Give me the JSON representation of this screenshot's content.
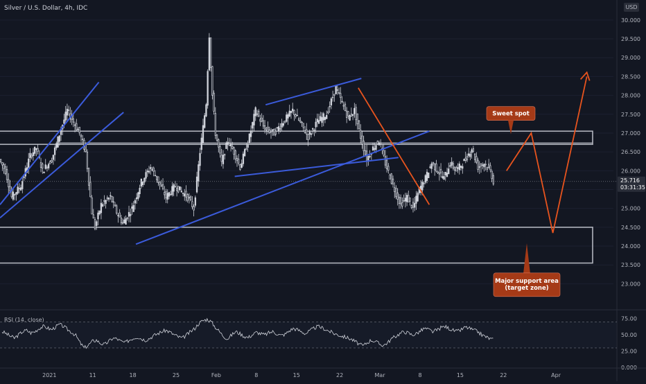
{
  "header": {
    "title": "Silver / U.S. Dollar, 4h, IDC",
    "currency": "USD"
  },
  "colors": {
    "background": "#131722",
    "candle": "#d1d4dc",
    "trendline_blue": "#3b5bdb",
    "projection_orange": "#e8541e",
    "zone_border": "#b2b5be",
    "callout_bg": "#a53a17",
    "price_tag_bg": "#2a2e39"
  },
  "chart_data": [
    {
      "type": "candlestick",
      "title": "Silver / U.S. Dollar, 4h, IDC",
      "ylim": [
        22.75,
        30.2
      ],
      "y_ticks": [
        "23.000",
        "23.500",
        "24.000",
        "24.500",
        "25.000",
        "25.500",
        "26.000",
        "26.500",
        "27.000",
        "27.500",
        "28.000",
        "28.500",
        "29.000",
        "29.500",
        "30.000"
      ],
      "x_ticks": [
        "2021",
        "11",
        "18",
        "25",
        "Feb",
        "8",
        "15",
        "22",
        "Mar",
        "8",
        "15",
        "22",
        "Apr"
      ],
      "last_price": "25.716",
      "countdown": "03:31:35",
      "price_path": [
        [
          0,
          26.3
        ],
        [
          2,
          26.0
        ],
        [
          4,
          25.3
        ],
        [
          7,
          25.6
        ],
        [
          10,
          26.4
        ],
        [
          12,
          26.6
        ],
        [
          14,
          26.0
        ],
        [
          17,
          26.3
        ],
        [
          20,
          27.1
        ],
        [
          22,
          27.6
        ],
        [
          24,
          27.3
        ],
        [
          26,
          27.0
        ],
        [
          28,
          26.5
        ],
        [
          30,
          24.9
        ],
        [
          31,
          24.5
        ],
        [
          33,
          25.1
        ],
        [
          36,
          25.3
        ],
        [
          38,
          24.9
        ],
        [
          40,
          24.6
        ],
        [
          43,
          25.0
        ],
        [
          46,
          25.7
        ],
        [
          49,
          26.1
        ],
        [
          51,
          25.8
        ],
        [
          54,
          25.3
        ],
        [
          57,
          25.6
        ],
        [
          61,
          25.3
        ],
        [
          63,
          25.0
        ],
        [
          65,
          26.5
        ],
        [
          67,
          27.8
        ],
        [
          68,
          29.6
        ],
        [
          69,
          28.0
        ],
        [
          70,
          27.0
        ],
        [
          72,
          26.2
        ],
        [
          74,
          26.8
        ],
        [
          76,
          26.5
        ],
        [
          78,
          26.1
        ],
        [
          81,
          26.9
        ],
        [
          83,
          27.6
        ],
        [
          86,
          27.1
        ],
        [
          89,
          27.0
        ],
        [
          92,
          27.3
        ],
        [
          95,
          27.6
        ],
        [
          98,
          27.2
        ],
        [
          100,
          26.9
        ],
        [
          103,
          27.3
        ],
        [
          106,
          27.5
        ],
        [
          109,
          28.2
        ],
        [
          111,
          27.8
        ],
        [
          113,
          27.4
        ],
        [
          115,
          27.6
        ],
        [
          117,
          26.9
        ],
        [
          119,
          26.3
        ],
        [
          121,
          26.6
        ],
        [
          123,
          26.8
        ],
        [
          125,
          26.2
        ],
        [
          128,
          25.5
        ],
        [
          130,
          25.1
        ],
        [
          132,
          25.3
        ],
        [
          134,
          25.0
        ],
        [
          136,
          25.5
        ],
        [
          138,
          25.8
        ],
        [
          140,
          26.2
        ],
        [
          142,
          26.0
        ],
        [
          144,
          25.8
        ],
        [
          146,
          26.2
        ],
        [
          148,
          26.0
        ],
        [
          151,
          26.3
        ],
        [
          153,
          26.6
        ],
        [
          155,
          26.1
        ],
        [
          157,
          26.2
        ],
        [
          159,
          26.0
        ],
        [
          160,
          25.716
        ]
      ],
      "levels": [
        {
          "name": "upper resistance zone",
          "from": 26.7,
          "to": 27.05
        },
        {
          "name": "major support zone",
          "from": 23.55,
          "to": 24.5
        }
      ],
      "trendlines_blue": [
        [
          [
            0,
            25.1
          ],
          [
            32,
            28.35
          ]
        ],
        [
          [
            0,
            24.75
          ],
          [
            40,
            27.55
          ]
        ],
        [
          [
            44,
            24.05
          ],
          [
            139,
            27.05
          ]
        ],
        [
          [
            76,
            25.85
          ],
          [
            129,
            26.35
          ]
        ],
        [
          [
            86,
            27.75
          ],
          [
            117,
            28.45
          ]
        ]
      ],
      "downtrend_orange": [
        [
          116,
          28.2
        ],
        [
          139,
          25.1
        ]
      ],
      "projection_path": [
        [
          164,
          26.0
        ],
        [
          172,
          27.0
        ],
        [
          179,
          24.35
        ],
        [
          190,
          28.5
        ]
      ],
      "annotations": [
        {
          "text": "Sweet spot",
          "price": 27.3
        },
        {
          "text": "Major support area\n(target zone)",
          "price": 22.9
        }
      ]
    },
    {
      "type": "line",
      "title": "RSI (14, close)",
      "ylim": [
        0,
        80
      ],
      "y_ticks": [
        "75.00",
        "50.00",
        "25.00",
        "0.000"
      ],
      "bands": [
        30,
        70
      ],
      "values": [
        55,
        52,
        48,
        45,
        50,
        55,
        57,
        53,
        55,
        60,
        63,
        61,
        58,
        62,
        66,
        63,
        58,
        54,
        49,
        38,
        30,
        34,
        40,
        42,
        37,
        35,
        40,
        45,
        44,
        40,
        38,
        42,
        45,
        47,
        44,
        42,
        45,
        49,
        52,
        55,
        57,
        54,
        50,
        47,
        45,
        50,
        55,
        60,
        68,
        72,
        74,
        70,
        62,
        55,
        48,
        44,
        50,
        55,
        52,
        48,
        46,
        50,
        54,
        52,
        50,
        53,
        55,
        52,
        49,
        51,
        56,
        60,
        58,
        55,
        52,
        56,
        60,
        63,
        61,
        58,
        55,
        52,
        50,
        48,
        46,
        44,
        40,
        36,
        33,
        38,
        42,
        40,
        36,
        34,
        38,
        44,
        48,
        52,
        55,
        53,
        50,
        52,
        56,
        60,
        58,
        55,
        57,
        61,
        63,
        60,
        57,
        55,
        58,
        62,
        60,
        57,
        55,
        50,
        47,
        44,
        42
      ]
    }
  ]
}
